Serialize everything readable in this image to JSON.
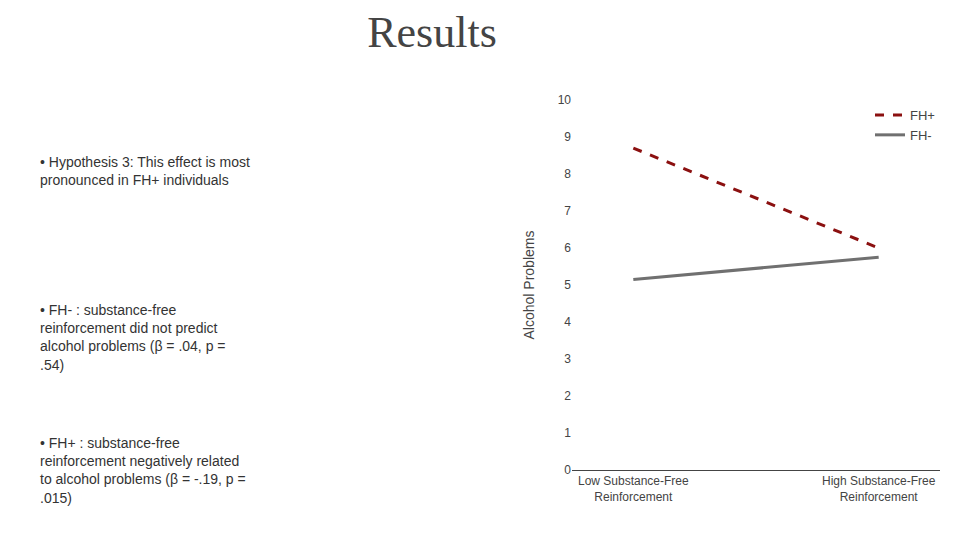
{
  "chart_data": {
    "type": "line",
    "title": "Results",
    "categories": [
      "Low Substance-Free\nReinforcement",
      "High Substance-Free\nReinforcement"
    ],
    "series": [
      {
        "name": "FH+",
        "color": "#8B1010",
        "line_style": "dashed",
        "values": [
          8.7,
          6.0
        ]
      },
      {
        "name": "FH-",
        "color": "#707070",
        "line_style": "solid",
        "values": [
          5.15,
          5.75
        ]
      }
    ],
    "ylabel": "Alcohol Problems",
    "ylim": [
      0,
      10
    ],
    "yticks": [
      0,
      1,
      2,
      3,
      4,
      5,
      6,
      7,
      8,
      9,
      10
    ],
    "grid": false,
    "legend": "upper right",
    "annotations": [
      "• Hypothesis 3: This effect is most\npronounced in FH+ individuals",
      "• FH- : substance-free\nreinforcement did not predict\nalcohol problems (β = .04, p =\n.54)",
      "• FH+ : substance-free\nreinforcement negatively related\nto alcohol problems (β = -.19, p =\n.015)"
    ]
  }
}
